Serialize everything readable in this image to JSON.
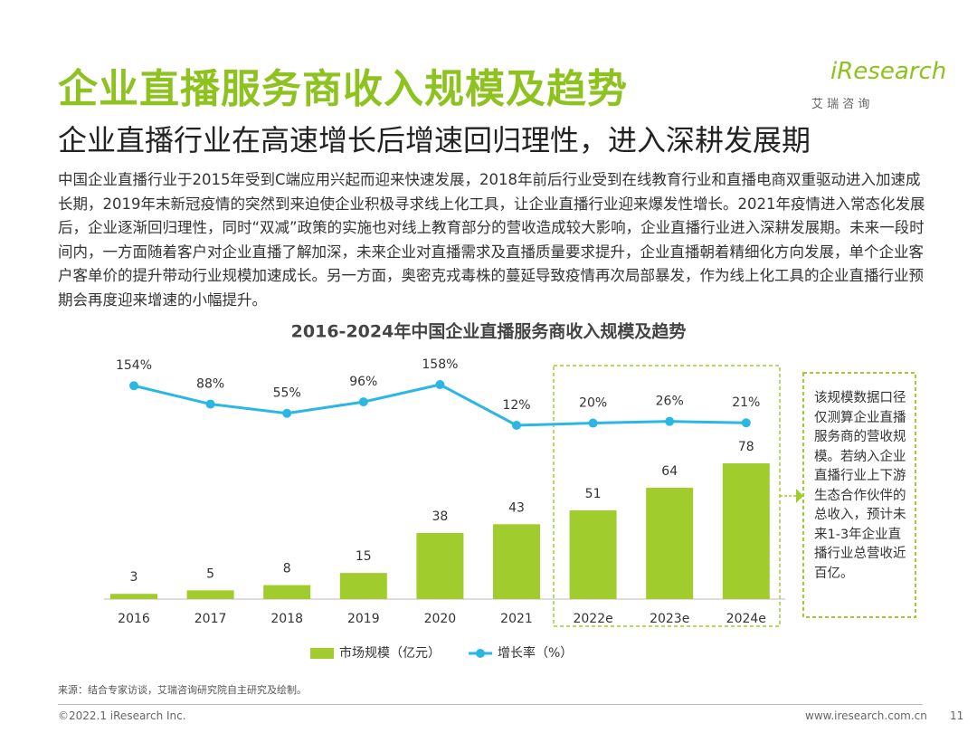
{
  "header": {
    "title": "企业直播服务商收入规模及趋势",
    "subtitle": "企业直播行业在高速增长后增速回归理性，进入深耕发展期",
    "logo": "iResearch",
    "logo_sub": "艾 瑞 咨 询"
  },
  "body": "中国企业直播行业于2015年受到C端应用兴起而迎来快速发展，2018年前后行业受到在线教育行业和直播电商双重驱动进入加速成长期，2019年末新冠疫情的突然到来迫使企业积极寻求线上化工具，让企业直播行业迎来爆发性增长。2021年疫情进入常态化发展后，企业逐渐回归理性，同时“双减”政策的实施也对线上教育部分的营收造成较大影响，企业直播行业进入深耕发展期。未来一段时间内，一方面随着客户对企业直播了解加深，未来企业对直播需求及直播质量要求提升，企业直播朝着精细化方向发展，单个企业客户客单价的提升带动行业规模加速成长。另一方面，奥密克戎毒株的蔓延导致疫情再次局部暴发，作为线上化工具的企业直播行业预期会再度迎来增速的小幅提升。",
  "chart_data": {
    "type": "bar",
    "title": "2016-2024年中国企业直播服务商收入规模及趋势",
    "categories": [
      "2016",
      "2017",
      "2018",
      "2019",
      "2020",
      "2021",
      "2022e",
      "2023e",
      "2024e"
    ],
    "series": [
      {
        "name": "市场规模（亿元）",
        "type": "bar",
        "color": "#a0cd2d",
        "values": [
          3,
          5,
          8,
          15,
          38,
          43,
          51,
          64,
          78
        ]
      },
      {
        "name": "增长率（%）",
        "type": "line",
        "color": "#2bb7e6",
        "values": [
          154,
          88,
          55,
          96,
          158,
          12,
          20,
          26,
          21
        ],
        "value_labels": [
          "154%",
          "88%",
          "55%",
          "96%",
          "158%",
          "12%",
          "20%",
          "26%",
          "21%"
        ]
      }
    ],
    "note": "该规模数据口径仅测算企业直播服务商的营收规模。若纳入企业直播行业上下游生态合作伙伴的总收入，预计未来1-3年企业直播行业总营收近百亿。"
  },
  "footer": {
    "source": "来源：结合专家访谈，艾瑞咨询研究院自主研究及绘制。",
    "copyright": "©2022.1 iResearch Inc.",
    "website": "www.iresearch.com.cn",
    "page": "11"
  }
}
